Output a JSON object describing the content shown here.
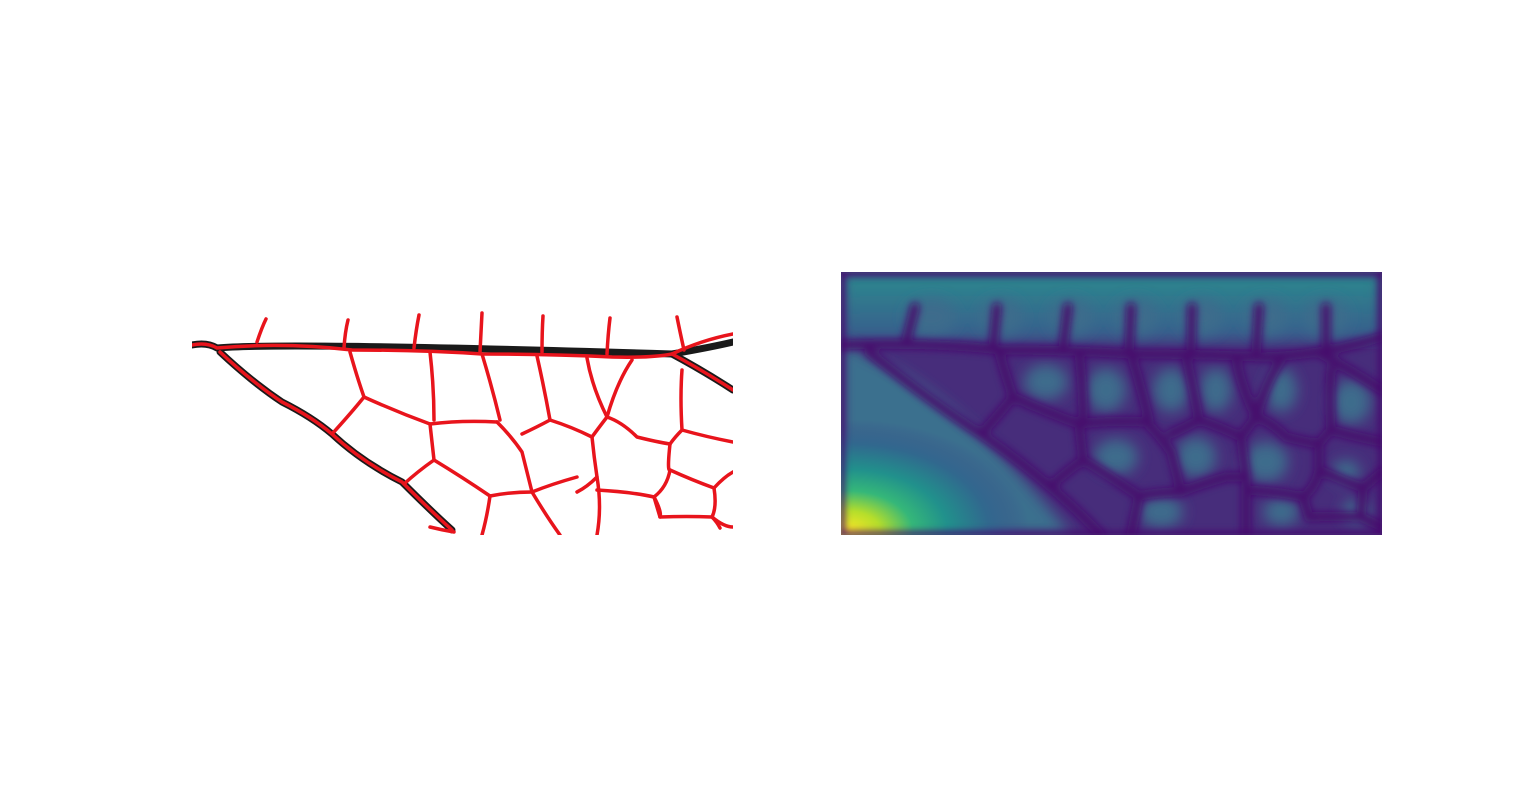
{
  "figure": {
    "panels": [
      {
        "id": "segmentation-overlay",
        "content": "vein-network-overlay"
      },
      {
        "id": "distance-map",
        "content": "distance-transform-heatmap",
        "colormap": "viridis"
      }
    ],
    "colors": {
      "vein_stroke": "#e8141c",
      "vein_core": "#1a1a1a",
      "background": "#ffffff",
      "viridis_low": "#46106d",
      "viridis_mid_low": "#3c4f8a",
      "viridis_mid": "#2a788e",
      "viridis_mid_high": "#22a884",
      "viridis_high": "#fde725"
    }
  }
}
